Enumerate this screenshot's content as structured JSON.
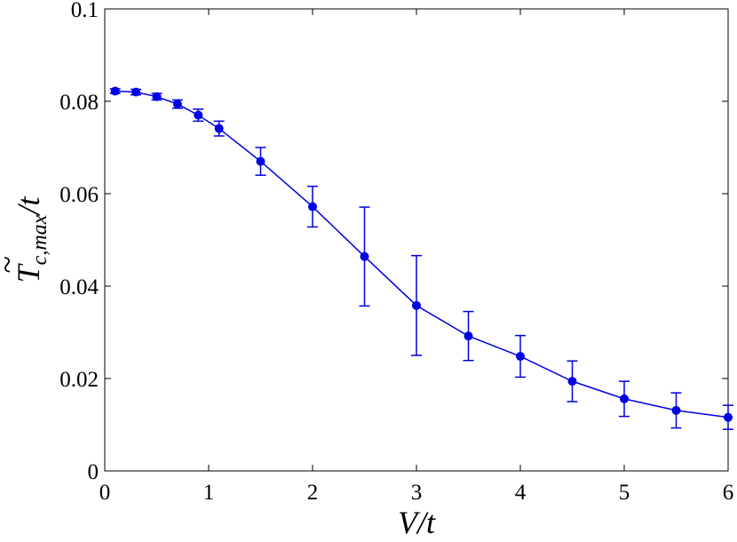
{
  "chart_data": {
    "type": "line",
    "title": "",
    "xlabel": "V/t",
    "ylabel": "T̃c,max/t",
    "ylabel_parts": {
      "base": "T",
      "accent": "~",
      "sub": "c,max",
      "suffix": "/t"
    },
    "xlim": [
      0,
      6
    ],
    "ylim": [
      0,
      0.1
    ],
    "xticks": [
      0,
      1,
      2,
      3,
      4,
      5,
      6
    ],
    "xtick_labels": [
      "0",
      "1",
      "2",
      "3",
      "4",
      "5",
      "6"
    ],
    "yticks": [
      0,
      0.02,
      0.04,
      0.06,
      0.08,
      0.1
    ],
    "ytick_labels": [
      "0",
      "0.02",
      "0.04",
      "0.06",
      "0.08",
      "0.1"
    ],
    "grid": false,
    "legend": "none",
    "color": "#0000e6",
    "series": [
      {
        "x": [
          0.1,
          0.3,
          0.5,
          0.7,
          0.9,
          1.1,
          1.5,
          2.0,
          2.5,
          3.0,
          3.5,
          4.0,
          4.5,
          5.0,
          5.5,
          6.0
        ],
        "y": [
          0.0822,
          0.082,
          0.081,
          0.0794,
          0.077,
          0.0741,
          0.067,
          0.0572,
          0.0464,
          0.0358,
          0.0292,
          0.0248,
          0.0194,
          0.0156,
          0.0131,
          0.0116
        ],
        "yerr": [
          0.0005,
          0.0006,
          0.0007,
          0.0009,
          0.0013,
          0.0016,
          0.003,
          0.0044,
          0.0107,
          0.0108,
          0.0053,
          0.0045,
          0.0044,
          0.0038,
          0.0038,
          0.0026
        ]
      }
    ]
  }
}
